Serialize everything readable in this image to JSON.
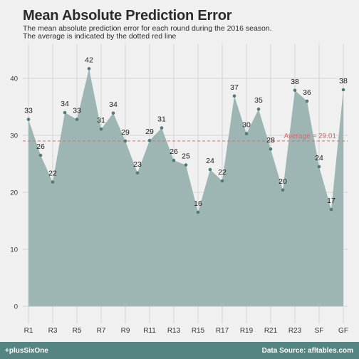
{
  "header": {
    "title": "Mean Absolute Prediction Error",
    "subtitle_line1": "The mean absolute prediction error for each round during the 2016 season.",
    "subtitle_line2": "The average is indicated by the dotted red line"
  },
  "footer": {
    "left": "+plusSixOne",
    "right": "Data Source: afltables.com"
  },
  "colors": {
    "background": "#f0f0f0",
    "area_fill": "#9db6b3",
    "point": "#4f7c78",
    "average_line": "#e8636b",
    "grid": "#d3d3d3",
    "footer_bg": "#558583"
  },
  "chart_data": {
    "type": "area",
    "title": "Mean Absolute Prediction Error",
    "x_tick_labels": [
      "R1",
      "R3",
      "R5",
      "R7",
      "R9",
      "R11",
      "R13",
      "R15",
      "R17",
      "R19",
      "R21",
      "R23",
      "SF",
      "GF"
    ],
    "y_ticks": [
      0,
      10,
      20,
      30,
      40
    ],
    "ylim": [
      -2,
      46
    ],
    "grid": true,
    "average": 29.01,
    "average_label": "Average =  29.01",
    "series": [
      {
        "values": [
          32.8,
          26.5,
          21.8,
          34.0,
          32.8,
          41.7,
          31.1,
          33.9,
          29.0,
          23.4,
          29.1,
          31.3,
          25.6,
          24.8,
          16.5,
          24.0,
          22.0,
          36.9,
          30.3,
          34.6,
          27.6,
          20.4,
          37.9,
          36.0,
          24.5,
          17.0,
          38.0
        ],
        "labels": [
          "33",
          "",
          "22",
          "34",
          "33",
          "42",
          "31",
          "34",
          "29",
          "23",
          "29",
          "31",
          "26",
          "25",
          "16",
          "24",
          "22",
          "37",
          "30",
          "35",
          "28",
          "20",
          "38",
          "36",
          "24",
          "17",
          "38"
        ]
      }
    ],
    "second_label": "26"
  }
}
